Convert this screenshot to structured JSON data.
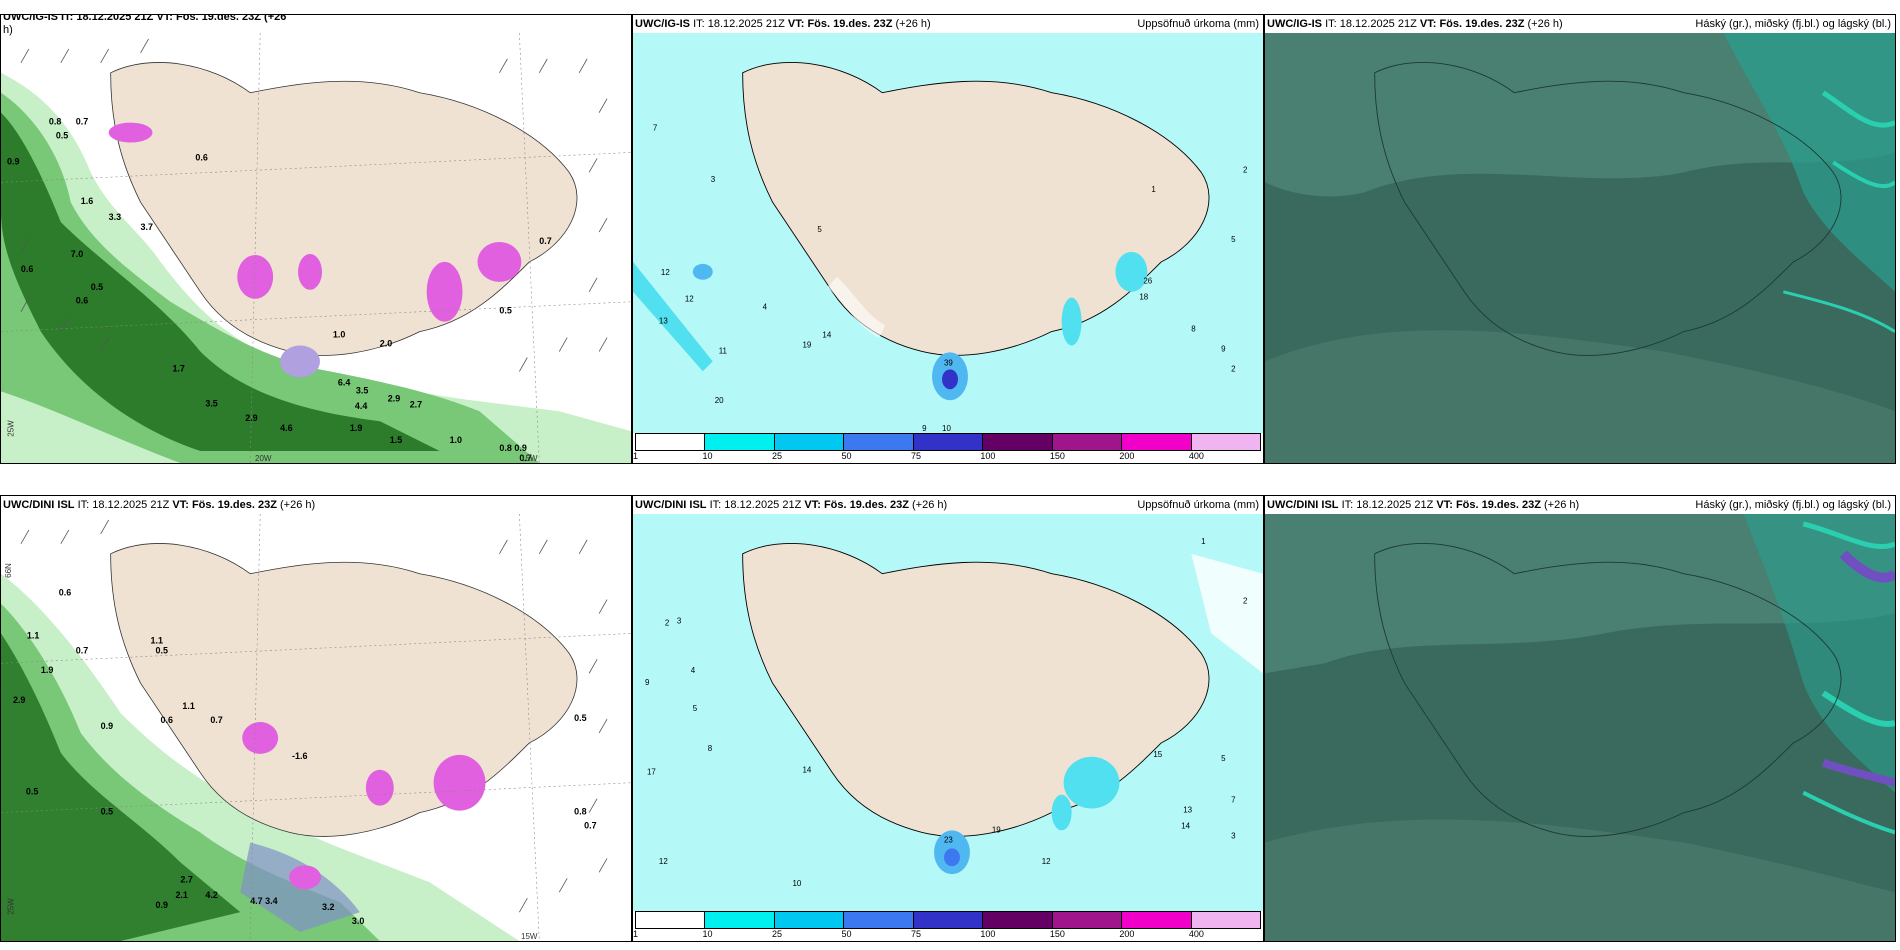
{
  "rows": [
    {
      "precip_title": {
        "model": "UWC/IG-IS",
        "it_label": "IT:",
        "it": "18.12.2025 21Z",
        "vt_label": "VT:",
        "vt": "Fös. 19.des. 23Z",
        "lead": "(+26 h)"
      },
      "wind_title_partial": "UWC/IG-IS IT: 18.12.2025 21Z VT: Fös. 19.des. 23Z (+26",
      "wind_title_wrap": "h)",
      "cloud_title": {
        "model": "UWC/IG-IS",
        "it_label": "IT:",
        "it": "18.12.2025 21Z",
        "vt_label": "VT:",
        "vt": "Fös. 19.des. 23Z",
        "lead": "(+26 h)"
      },
      "wind_numbers": [
        "0.7",
        "0.8",
        "0.5",
        "0.9",
        "0.6",
        "1.6",
        "3.3",
        "3.7",
        "7.0",
        "0.6",
        "0.5",
        "0.6",
        "1.7",
        "3.5",
        "2.9",
        "4.6",
        "1.9",
        "2.9",
        "2.7",
        "1.5",
        "1.0",
        "0.8",
        "0.9",
        "0.7",
        "0.5",
        "1.0",
        "2.0",
        "3.5",
        "4.4",
        "6.4",
        "0.7"
      ],
      "precip_numbers": [
        "7",
        "3",
        "12",
        "12",
        "13",
        "11",
        "20",
        "5",
        "4",
        "19",
        "14",
        "9",
        "10",
        "39",
        "26",
        "18",
        "8",
        "9",
        "2",
        "1",
        "2",
        "5"
      ]
    },
    {
      "precip_title": {
        "model": "UWC/DINI ISL",
        "it_label": "IT:",
        "it": "18.12.2025 21Z",
        "vt_label": "VT:",
        "vt": "Fös. 19.des. 23Z",
        "lead": "(+26 h)"
      },
      "wind_title": {
        "model": "UWC/DINI ISL",
        "it_label": "IT:",
        "it": "18.12.2025 21Z",
        "vt_label": "VT:",
        "vt": "Fös. 19.des. 23Z",
        "lead": "(+26 h)"
      },
      "cloud_title": {
        "model": "UWC/DINI ISL",
        "it_label": "IT:",
        "it": "18.12.2025 21Z",
        "vt_label": "VT:",
        "vt": "Fös. 19.des. 23Z",
        "lead": "(+26 h)"
      },
      "wind_numbers": [
        "0.6",
        "1.1",
        "2.9",
        "1.9",
        "0.5",
        "0.7",
        "0.5",
        "0.9",
        "1.1",
        "0.5",
        "0.6",
        "1.1",
        "-1.6",
        "0.7",
        "0.9",
        "2.7",
        "2.1",
        "4.2",
        "4.7",
        "3.4",
        "3.2",
        "3.0",
        "0.8",
        "0.7",
        "0.5"
      ],
      "precip_numbers": [
        "3",
        "2",
        "9",
        "4",
        "5",
        "8",
        "17",
        "12",
        "14",
        "10",
        "23",
        "19",
        "15",
        "13",
        "14",
        "12",
        "5",
        "7",
        "3",
        "2",
        "1"
      ]
    }
  ],
  "precip_label": "Uppsöfnuð úrkoma (mm)",
  "cloud_label": "Háský (gr.), miðský (fj.bl.) og lágský (bl.)",
  "colorbar": {
    "ticks": [
      "1",
      "10",
      "25",
      "50",
      "75",
      "100",
      "150",
      "200",
      "400"
    ],
    "colors": [
      "#ffffff",
      "#00f0f0",
      "#00c8f0",
      "#3c78f0",
      "#3232c8",
      "#640064",
      "#a0148c",
      "#f000c8",
      "#f0b4f0"
    ]
  },
  "axis_labels": {
    "lat66": "66N",
    "lat64": "64N",
    "lon25": "25W",
    "lon20": "20W",
    "lon15": "15W"
  },
  "colors": {
    "land": "#efe2d2",
    "precip_light": "#b4f8f8",
    "precip_mid": "#50e0f0",
    "wind_green1": "#c8f0c8",
    "wind_green2": "#78c878",
    "wind_green3": "#1e6e1e",
    "wind_magenta": "#e060e0",
    "cloud_bg": "#3a6a5e",
    "cloud_cyan": "#2acfb0",
    "cloud_purple": "#7050c0"
  }
}
